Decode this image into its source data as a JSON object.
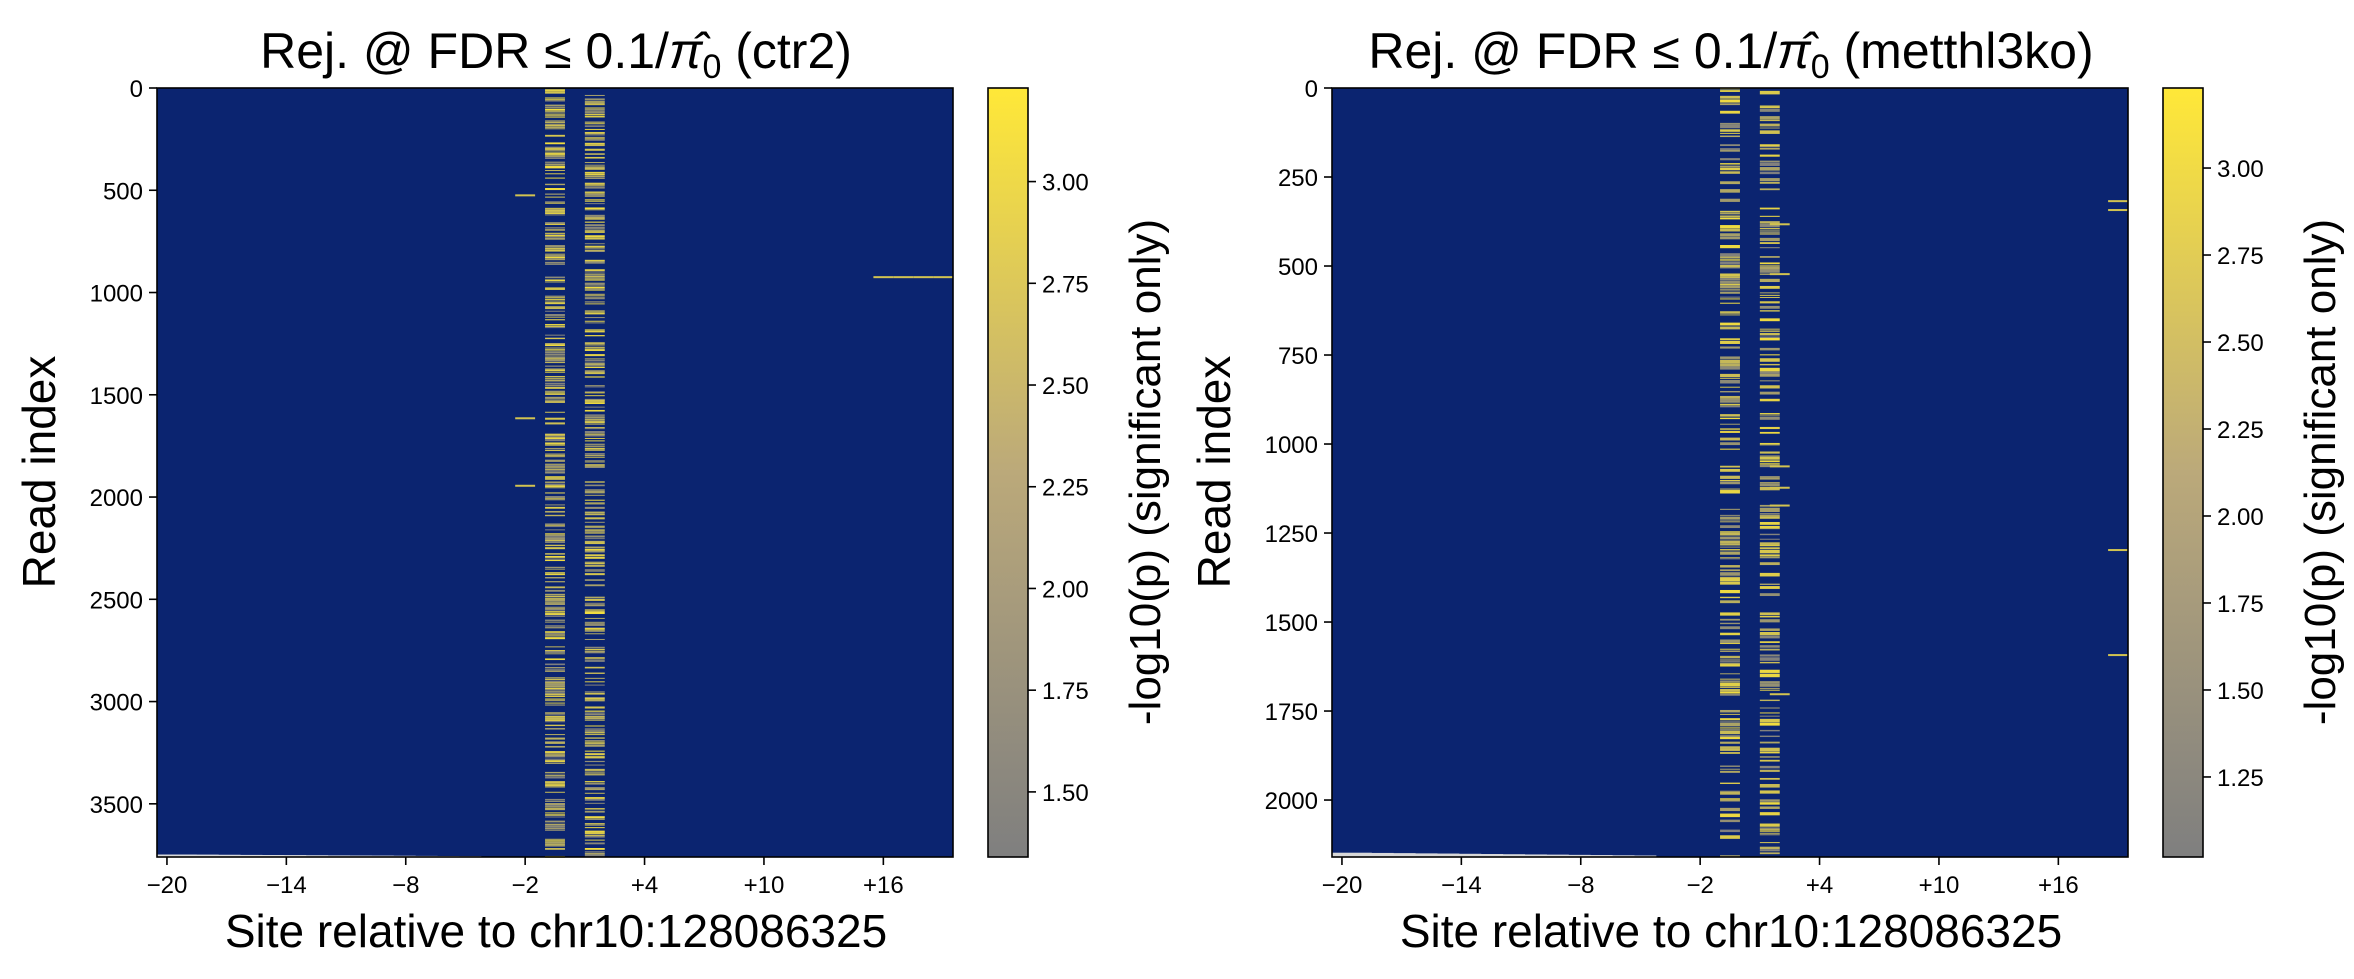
{
  "colors": {
    "background": "#0b2470",
    "colormap_low": "#7f7f7f",
    "colormap_high": "#ffe838",
    "read_end": "#d9d9d9",
    "frame": "#000000"
  },
  "chart_data": [
    {
      "type": "heatmap",
      "title_prefix": "Rej. @ FDR ≤ 0.1/",
      "title_symbol": "π̂",
      "title_subscript": "0",
      "title_suffix": " (ctr2)",
      "xlabel": "Site relative to chr10:128086325",
      "ylabel": "Read index",
      "x_ticks": [
        "−20",
        "−14",
        "−8",
        "−2",
        "+4",
        "+10",
        "+16"
      ],
      "x_tick_values": [
        -20,
        -14,
        -8,
        -2,
        4,
        10,
        16
      ],
      "xlim": [
        -20.5,
        19.5
      ],
      "y_ticks": [
        "0",
        "500",
        "1000",
        "1500",
        "2000",
        "2500",
        "3000",
        "3500"
      ],
      "y_tick_values": [
        0,
        500,
        1000,
        1500,
        2000,
        2500,
        3000,
        3500
      ],
      "ylim": [
        3760,
        0
      ],
      "n_reads": 3760,
      "dense_columns": [
        -0.5,
        1.5
      ],
      "colorbar_label": "-log10(p) (significant only)",
      "colorbar_ticks": [
        "1.50",
        "1.75",
        "2.00",
        "2.25",
        "2.50",
        "2.75",
        "3.00"
      ],
      "colorbar_tick_values": [
        1.5,
        1.75,
        2.0,
        2.25,
        2.5,
        2.75,
        3.0
      ],
      "colorbar_range": [
        1.34,
        3.23
      ],
      "isolated_hits": [
        {
          "x": -2,
          "read": 520
        },
        {
          "x": -2,
          "read": 1610
        },
        {
          "x": -2,
          "read": 1940
        },
        {
          "x": 16,
          "read": 920
        },
        {
          "x": 17,
          "read": 920
        },
        {
          "x": 18,
          "read": 920
        },
        {
          "x": 19,
          "read": 920
        }
      ]
    },
    {
      "type": "heatmap",
      "title_prefix": "Rej. @ FDR ≤ 0.1/",
      "title_symbol": "π̂",
      "title_subscript": "0",
      "title_suffix": " (metthl3ko)",
      "xlabel": "Site relative to chr10:128086325",
      "ylabel": "Read index",
      "x_ticks": [
        "−20",
        "−14",
        "−8",
        "−2",
        "+4",
        "+10",
        "+16"
      ],
      "x_tick_values": [
        -20,
        -14,
        -8,
        -2,
        4,
        10,
        16
      ],
      "xlim": [
        -20.5,
        19.5
      ],
      "y_ticks": [
        "0",
        "250",
        "500",
        "750",
        "1000",
        "1250",
        "1500",
        "1750",
        "2000"
      ],
      "y_tick_values": [
        0,
        250,
        500,
        750,
        1000,
        1250,
        1500,
        1750,
        2000
      ],
      "ylim": [
        2160,
        0
      ],
      "n_reads": 2160,
      "dense_columns": [
        -0.5,
        1.5
      ],
      "colorbar_label": "-log10(p) (significant only)",
      "colorbar_ticks": [
        "1.25",
        "1.50",
        "1.75",
        "2.00",
        "2.25",
        "2.50",
        "2.75",
        "3.00"
      ],
      "colorbar_tick_values": [
        1.25,
        1.5,
        1.75,
        2.0,
        2.25,
        2.5,
        2.75,
        3.0
      ],
      "colorbar_range": [
        1.02,
        3.23
      ],
      "isolated_hits": [
        {
          "x": 2,
          "read": 380
        },
        {
          "x": 2,
          "read": 520
        },
        {
          "x": 2,
          "read": 1060
        },
        {
          "x": 2,
          "read": 1120
        },
        {
          "x": 2,
          "read": 1170
        },
        {
          "x": 2,
          "read": 1700
        },
        {
          "x": 19,
          "read": 315
        },
        {
          "x": 19,
          "read": 340
        },
        {
          "x": 19,
          "read": 1295
        },
        {
          "x": 19,
          "read": 1590
        }
      ]
    }
  ]
}
